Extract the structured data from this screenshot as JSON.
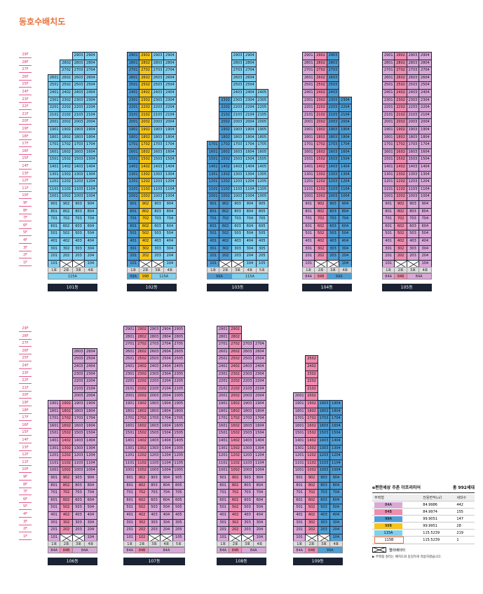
{
  "title": "동호수배치도",
  "colors": {
    "84A": "#d9a8d9",
    "84B": "#f08cb0",
    "99A": "#4e9fd6",
    "99B": "#f5c518",
    "115A": "#7fd0f0",
    "115B": "#ffffff",
    "X": "#ffffff"
  },
  "floors": [
    "29F",
    "28F",
    "27F",
    "26F",
    "25F",
    "24F",
    "23F",
    "22F",
    "21F",
    "20F",
    "19F",
    "18F",
    "17F",
    "16F",
    "15F",
    "14F",
    "13F",
    "12F",
    "11F",
    "10F",
    "9F",
    "8F",
    "7F",
    "6F",
    "5F",
    "4F",
    "3F",
    "2F",
    "1F"
  ],
  "buildings": [
    {
      "name": "101동",
      "lines": [
        "1호",
        "2호",
        "3호",
        "4호"
      ],
      "types": [
        "115A",
        "115A",
        "115A",
        "115A"
      ],
      "tops": [
        26,
        28,
        29,
        29
      ],
      "bottom": [
        "101",
        "X",
        "X",
        "104"
      ],
      "typebar": [
        {
          "label": "115A",
          "span": 4,
          "type": "115A"
        }
      ]
    },
    {
      "name": "102동",
      "lines": [
        "1호",
        "2호",
        "3호",
        "4호"
      ],
      "types": [
        "99A",
        "99B",
        "115A",
        "115A"
      ],
      "tops": [
        29,
        29,
        29,
        29
      ],
      "bottom": [
        "101",
        "X",
        "X",
        "104"
      ],
      "typebar": [
        {
          "label": "99A",
          "span": 1,
          "type": "99A"
        },
        {
          "label": "99B",
          "span": 1,
          "type": "99B"
        },
        {
          "label": "115A",
          "span": 2,
          "type": "115A"
        }
      ]
    },
    {
      "name": "103동",
      "lines": [
        "1호",
        "2호",
        "3호",
        "4호",
        "5호"
      ],
      "types": [
        "99A",
        "99A",
        "115A",
        "115A",
        "115A"
      ],
      "tops": [
        17,
        23,
        29,
        29,
        24
      ],
      "bottom": [
        "101",
        "X",
        "X",
        "104",
        "105"
      ],
      "typebar": [
        {
          "label": "99A",
          "span": 2,
          "type": "99A"
        },
        {
          "label": "115A",
          "span": 3,
          "type": "115A"
        }
      ]
    },
    {
      "name": "104동",
      "lines": [
        "1호",
        "2호",
        "3호",
        "4호"
      ],
      "types": [
        "84A",
        "84B",
        "99A",
        "99A"
      ],
      "tops": [
        29,
        29,
        29,
        23
      ],
      "bottom": [
        "101",
        "X",
        "X",
        "104"
      ],
      "typebar": [
        {
          "label": "84A",
          "span": 1,
          "type": "84A"
        },
        {
          "label": "84B",
          "span": 1,
          "type": "84B"
        },
        {
          "label": "99A",
          "span": 2,
          "type": "99A"
        }
      ]
    },
    {
      "name": "105동",
      "lines": [
        "1호",
        "2호",
        "3호",
        "4호"
      ],
      "types": [
        "84A",
        "84B",
        "84A",
        "84A"
      ],
      "tops": [
        29,
        29,
        29,
        29
      ],
      "bottom": [
        "101",
        "X",
        "X",
        "104"
      ],
      "typebar": [
        {
          "label": "84A",
          "span": 1,
          "type": "84A"
        },
        {
          "label": "84B",
          "span": 1,
          "type": "84B"
        },
        {
          "label": "84A",
          "span": 2,
          "type": "84A"
        }
      ]
    },
    {
      "name": "106동",
      "lines": [
        "1호",
        "2호",
        "3호",
        "4호"
      ],
      "types": [
        "84A",
        "84B",
        "84A",
        "84A"
      ],
      "tops": [
        19,
        19,
        26,
        26
      ],
      "bottom": [
        "101",
        "X",
        "X",
        "104"
      ],
      "typebar": [
        {
          "label": "84A",
          "span": 1,
          "type": "84A"
        },
        {
          "label": "84B",
          "span": 1,
          "type": "84B"
        },
        {
          "label": "84A",
          "span": 2,
          "type": "84A"
        }
      ]
    },
    {
      "name": "107동",
      "lines": [
        "1호",
        "2호",
        "3호",
        "4호",
        "5호"
      ],
      "types": [
        "84A",
        "84B",
        "84A",
        "84A",
        "84A"
      ],
      "tops": [
        29,
        29,
        29,
        29,
        29
      ],
      "bottom": [
        "101",
        "102",
        "X",
        "X",
        "105"
      ],
      "typebar": [
        {
          "label": "84A",
          "span": 1,
          "type": "84A"
        },
        {
          "label": "84B",
          "span": 1,
          "type": "84B"
        },
        {
          "label": "84A",
          "span": 3,
          "type": "84A"
        }
      ]
    },
    {
      "name": "108동",
      "lines": [
        "1호",
        "2호",
        "3호",
        "4호"
      ],
      "types": [
        "84A",
        "84B",
        "84A",
        "84A"
      ],
      "tops": [
        29,
        29,
        27,
        27
      ],
      "bottom": [
        "101",
        "X",
        "X",
        "104"
      ],
      "typebar": [
        {
          "label": "84A",
          "span": 1,
          "type": "84A"
        },
        {
          "label": "84B",
          "span": 1,
          "type": "84B"
        },
        {
          "label": "84A",
          "span": 2,
          "type": "84A"
        }
      ]
    },
    {
      "name": "109동",
      "lines": [
        "1호",
        "2호",
        "3호",
        "4호"
      ],
      "types": [
        "84A",
        "84B",
        "99A",
        "99A"
      ],
      "tops": [
        20,
        25,
        19,
        19
      ],
      "bottom": [
        "101",
        "X",
        "X",
        "104"
      ],
      "typebar": [
        {
          "label": "84A",
          "span": 1,
          "type": "84A"
        },
        {
          "label": "84B",
          "span": 1,
          "type": "84B"
        },
        {
          "label": "99A",
          "span": 2,
          "type": "99A"
        }
      ]
    }
  ],
  "legend": {
    "title": "e편한세상 주촌 더프리미어",
    "total": "총 992세대",
    "headers": [
      "주택형",
      "전용면적(㎡)",
      "세대수"
    ],
    "rows": [
      {
        "type": "84A",
        "area": "84.9986",
        "count": "442"
      },
      {
        "type": "84B",
        "area": "84.9974",
        "count": "155"
      },
      {
        "type": "99A",
        "area": "99.9051",
        "count": "147"
      },
      {
        "type": "99B",
        "area": "99.9951",
        "count": "28"
      },
      {
        "type": "115A",
        "area": "115.5239",
        "count": "219"
      },
      {
        "type": "115B",
        "area": "115.5239",
        "count": "1"
      }
    ],
    "elevator": "엘리베이터",
    "note": "▶ 주택형 컬러는 배치도와 동일하게 적용하였습니다."
  }
}
